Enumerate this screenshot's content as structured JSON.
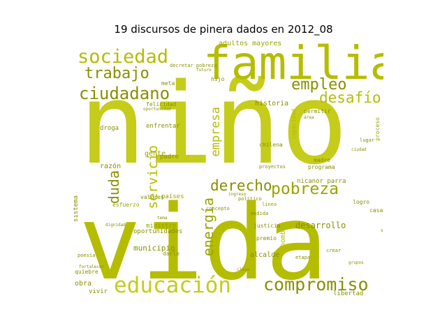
{
  "title": "19 discursos de pinera dados en 2012_08",
  "palette": {
    "c1": "#b5bd00",
    "c2": "#9aa300",
    "c3": "#c5cc1a",
    "c4": "#8a8f00",
    "c5": "#d0d43a"
  },
  "words": {
    "nino": "niño",
    "vida": "vida",
    "familia": "familia",
    "sociedad": "sociedad",
    "trabajo": "trabajo",
    "ciudadano": "ciudadano",
    "empleo": "empleo",
    "desafio": "desafío",
    "educacion": "educación",
    "compromiso": "compromiso",
    "pobreza": "pobreza",
    "derecho": "derecho",
    "servicio": "servicio",
    "energia": "energía",
    "empresa": "empresa",
    "duda": "duda",
    "adultos_mayores": "adultos mayores",
    "historia": "historia",
    "razon": "razón",
    "gente": "gente",
    "enfrentar": "enfrentar",
    "padre": "padre",
    "droga": "droga",
    "felicidad": "felicidad",
    "desarrollo": "desarrollo",
    "alcalde": "alcalde",
    "municipio": "municipio",
    "ministro": "ministro",
    "oportunidades": "oportunidades",
    "obra": "obra",
    "vivir": "vivir",
    "libertad": "libertad",
    "nicanor_parra": "nicanor parra",
    "madre": "madre",
    "programa": "programa",
    "permitir": "permitir",
    "chilena": "chilena",
    "paises": "países",
    "valores": "valores",
    "esfuerzo": "esfuerzo",
    "concepto": "concepto",
    "premio": "premio",
    "medida": "medida",
    "linea": "línea",
    "justicia": "justicia",
    "logro": "logro",
    "casa": "casa",
    "etapa": "etapa",
    "hijo": "hijo",
    "meta": "meta",
    "sistema": "sistema",
    "quiebre": "quiebre",
    "poesia": "poesía",
    "crear": "crear",
    "hombre": "hombre",
    "decretar_pobreza": "decretar pobreza",
    "proyectos": "proyectos",
    "dignidad": "dignidad",
    "darle": "darle",
    "fortalecer": "fortalecer",
    "lugar": "lugar",
    "proceso": "proceso",
    "capacidad": "capacidad",
    "politico": "político",
    "salud": "salud",
    "area": "área",
    "oportunidad": "oportunidad",
    "ingreso": "ingreso",
    "grupos": "grupos",
    "ciudad": "ciudad",
    "tema": "tema",
    "futuro": "futuro",
    "clase": "clase"
  }
}
